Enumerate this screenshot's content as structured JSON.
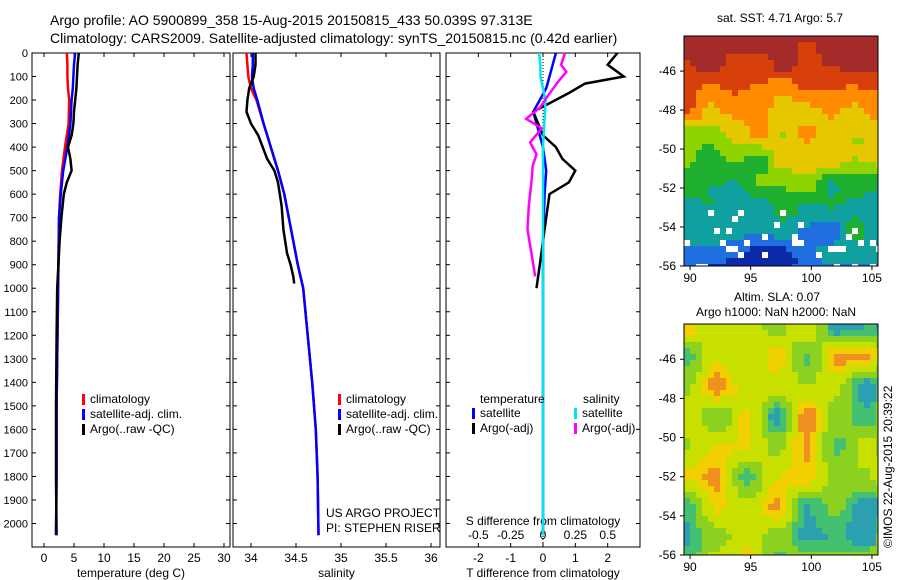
{
  "header": {
    "line1": "Argo profile: AO 5900899_358 15-Aug-2015 20150815_433 50.039S 97.313E",
    "line2": "Climatology: CARS2009. Satellite-adjusted climatology: synTS_20150815.nc (0.42d earlier)"
  },
  "credits": {
    "project": "US ARGO PROJECT",
    "pi": "PI: STEPHEN RISER",
    "imos": "©IMOS 22-Aug-2015 20:39:22"
  },
  "colors": {
    "climatology": "#ff0000",
    "satellite": "#0000ff",
    "argo": "#000000",
    "salinity_satellite": "#00e5ee",
    "salinity_argo": "#ff00ff"
  },
  "chart_data": [
    {
      "type": "line",
      "id": "temperature",
      "xlabel": "temperature (deg C)",
      "ylabel": "",
      "xlim": [
        -2,
        31
      ],
      "ylim": [
        2100,
        0
      ],
      "xticks": [
        0,
        5,
        10,
        15,
        20,
        25,
        30
      ],
      "yticks": [
        0,
        100,
        200,
        300,
        400,
        500,
        600,
        700,
        800,
        900,
        1000,
        1100,
        1200,
        1300,
        1400,
        1500,
        1600,
        1700,
        1800,
        1900,
        2000
      ],
      "legend": [
        "climatology",
        "satellite-adj. clim.",
        "Argo(..raw -QC)"
      ],
      "series": [
        {
          "name": "climatology",
          "color": "#ff0000",
          "x": [
            3.8,
            3.9,
            3.9,
            4.0,
            4.2,
            4.1,
            3.5,
            3.0,
            2.7,
            2.5,
            2.4,
            2.3,
            2.2,
            2.1,
            2.1,
            2.0
          ],
          "y": [
            0,
            50,
            100,
            150,
            200,
            300,
            400,
            500,
            600,
            700,
            900,
            1100,
            1300,
            1500,
            1800,
            2050
          ]
        },
        {
          "name": "satellite-adj. clim.",
          "color": "#0000ff",
          "x": [
            5.2,
            5.0,
            4.9,
            4.8,
            4.6,
            4.4,
            3.9,
            3.2,
            2.8,
            2.5,
            2.4,
            2.3,
            2.2,
            2.1,
            2.1,
            2.0
          ],
          "y": [
            0,
            50,
            100,
            150,
            200,
            300,
            400,
            500,
            600,
            700,
            900,
            1100,
            1300,
            1500,
            1800,
            2050
          ]
        },
        {
          "name": "Argo(..raw -QC)",
          "color": "#000000",
          "x": [
            5.8,
            5.6,
            5.5,
            5.4,
            5.2,
            5.0,
            4.9,
            4.6,
            4.0,
            4.4,
            4.6,
            3.8,
            3.3,
            2.9,
            2.6,
            2.4,
            2.2,
            2.1,
            2.0,
            2.0,
            2.1
          ],
          "y": [
            0,
            50,
            100,
            150,
            200,
            250,
            300,
            350,
            400,
            450,
            500,
            550,
            600,
            700,
            800,
            900,
            1000,
            1200,
            1500,
            1800,
            2050
          ]
        }
      ]
    },
    {
      "type": "line",
      "id": "salinity",
      "xlabel": "salinity",
      "ylabel": "",
      "xlim": [
        33.8,
        36.1
      ],
      "ylim": [
        2100,
        0
      ],
      "xticks": [
        34,
        34.5,
        35,
        35.5,
        36
      ],
      "legend": [
        "climatology",
        "satellite-adj. clim.",
        "Argo(..raw -QC)"
      ],
      "series": [
        {
          "name": "climatology",
          "color": "#ff0000",
          "x": [
            33.95,
            33.96,
            33.97,
            34.0,
            34.06,
            34.14,
            34.22,
            34.3,
            34.37,
            34.42,
            34.47,
            34.52,
            34.58,
            34.63,
            34.68,
            34.72,
            34.74,
            34.75
          ],
          "y": [
            0,
            50,
            100,
            150,
            200,
            300,
            400,
            500,
            600,
            700,
            800,
            900,
            1000,
            1200,
            1400,
            1600,
            1800,
            2050
          ]
        },
        {
          "name": "satellite-adj. clim.",
          "color": "#0000ff",
          "x": [
            34.02,
            34.02,
            34.01,
            34.03,
            34.07,
            34.14,
            34.22,
            34.3,
            34.37,
            34.42,
            34.47,
            34.52,
            34.58,
            34.63,
            34.68,
            34.72,
            34.74,
            34.75
          ],
          "y": [
            0,
            50,
            100,
            150,
            200,
            300,
            400,
            500,
            600,
            700,
            800,
            900,
            1000,
            1200,
            1400,
            1600,
            1800,
            2050
          ]
        },
        {
          "name": "Argo(..raw -QC)",
          "color": "#000000",
          "x": [
            34.05,
            34.05,
            34.03,
            33.98,
            33.96,
            33.95,
            34.0,
            34.08,
            34.18,
            34.26,
            34.3,
            34.34,
            34.36,
            34.4,
            34.44,
            34.47,
            34.48
          ],
          "y": [
            0,
            50,
            100,
            150,
            200,
            250,
            300,
            350,
            450,
            500,
            550,
            650,
            750,
            850,
            900,
            950,
            980
          ]
        }
      ]
    },
    {
      "type": "line",
      "id": "difference",
      "xlabel": "T difference from climatology",
      "top_label": "S difference from climatology",
      "xlim": [
        -3,
        3
      ],
      "ylim": [
        2100,
        0
      ],
      "xticks": [
        -2,
        -1,
        0,
        1,
        2
      ],
      "s_xticks": [
        -0.5,
        -0.25,
        0,
        0.25,
        0.5
      ],
      "legend_headers": [
        "temperature",
        "salinity"
      ],
      "legend": [
        "satellite",
        "Argo(-adj)",
        "satellite",
        "Argo(-adj)"
      ],
      "series": [
        {
          "name": "satellite",
          "group": "temperature",
          "color": "#0000ff",
          "x": [
            0.4,
            0.3,
            0.2,
            0.1,
            -0.1,
            -0.3,
            -0.2,
            0.0,
            0.1,
            0.05,
            0.0,
            0.0,
            0.0,
            0.0,
            0.0,
            0.0,
            0.0
          ],
          "y": [
            0,
            50,
            100,
            150,
            200,
            250,
            300,
            400,
            500,
            600,
            800,
            1000,
            1200,
            1400,
            1600,
            1800,
            2050
          ]
        },
        {
          "name": "Argo(-adj)",
          "group": "temperature",
          "color": "#000000",
          "x": [
            2.3,
            2.0,
            2.5,
            1.3,
            0.8,
            -0.3,
            0.0,
            0.4,
            0.6,
            1.0,
            0.8,
            0.2,
            0.1,
            0.0,
            -0.1,
            -0.2
          ],
          "y": [
            0,
            50,
            100,
            130,
            170,
            250,
            350,
            400,
            450,
            500,
            550,
            600,
            700,
            800,
            900,
            1000
          ]
        },
        {
          "name": "satellite",
          "group": "salinity",
          "color": "#00e5ee",
          "x": [
            -0.03,
            -0.02,
            -0.02,
            0.0,
            0.02,
            0.01,
            0.0,
            0.0,
            0.0,
            0.0,
            0.0,
            0.0,
            0.0
          ],
          "y": [
            0,
            50,
            100,
            150,
            200,
            300,
            400,
            600,
            800,
            1000,
            1300,
            1600,
            2050
          ]
        },
        {
          "name": "Argo(-adj)",
          "group": "salinity",
          "color": "#ff00ff",
          "x": [
            0.17,
            0.14,
            0.18,
            0.12,
            0.04,
            -0.02,
            -0.13,
            -0.01,
            -0.1,
            -0.05,
            -0.08,
            -0.09,
            -0.11,
            -0.12,
            -0.09,
            -0.06
          ],
          "y": [
            0,
            50,
            80,
            120,
            180,
            230,
            280,
            320,
            380,
            430,
            480,
            550,
            650,
            750,
            850,
            950
          ]
        }
      ]
    },
    {
      "type": "heatmap",
      "id": "sst-map",
      "title": "sat. SST: 4.71 Argo: 5.7",
      "xlim": [
        89.5,
        105.5
      ],
      "ylim": [
        -56,
        -44.2
      ],
      "xticks": [
        90,
        95,
        100,
        105
      ],
      "yticks": [
        -46,
        -48,
        -50,
        -52,
        -54,
        -56
      ],
      "color_by_latitude": [
        "#a52a2a",
        "#d73f0b",
        "#ff8c00",
        "#e6c800",
        "#8fd400",
        "#20b030",
        "#10a0a0",
        "#1f6fe0",
        "#0a2aa8"
      ]
    },
    {
      "type": "heatmap",
      "id": "sla-map",
      "title_line1": "Altim. SLA: 0.07",
      "title_line2": "Argo h1000: NaN h2000: NaN",
      "xlim": [
        89.5,
        105.5
      ],
      "ylim": [
        -56,
        -44.2
      ],
      "xticks": [
        90,
        95,
        100,
        105
      ],
      "yticks": [
        -46,
        -48,
        -50,
        -52,
        -54,
        -56
      ]
    }
  ]
}
